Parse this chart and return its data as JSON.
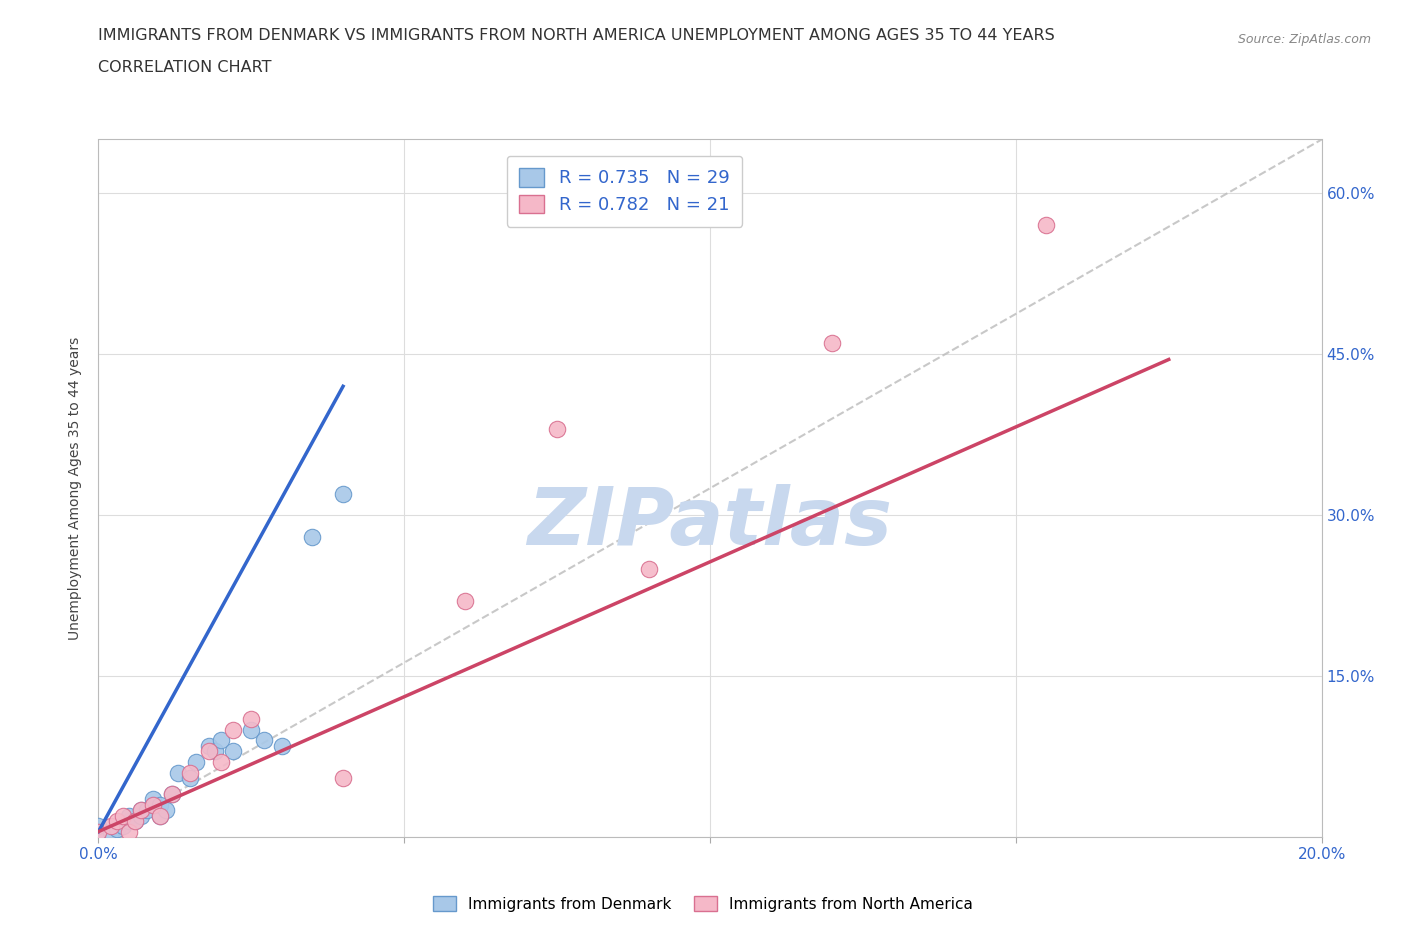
{
  "title_line1": "IMMIGRANTS FROM DENMARK VS IMMIGRANTS FROM NORTH AMERICA UNEMPLOYMENT AMONG AGES 35 TO 44 YEARS",
  "title_line2": "CORRELATION CHART",
  "source_text": "Source: ZipAtlas.com",
  "ylabel": "Unemployment Among Ages 35 to 44 years",
  "x_min": 0.0,
  "x_max": 0.2,
  "y_min": 0.0,
  "y_max": 0.65,
  "x_ticks": [
    0.0,
    0.05,
    0.1,
    0.15,
    0.2
  ],
  "x_tick_labels": [
    "0.0%",
    "",
    "",
    "",
    "20.0%"
  ],
  "y_ticks": [
    0.0,
    0.15,
    0.3,
    0.45,
    0.6
  ],
  "y_tick_labels": [
    "",
    "15.0%",
    "30.0%",
    "45.0%",
    "60.0%"
  ],
  "denmark_color": "#a8c8e8",
  "denmark_edge_color": "#6699cc",
  "north_america_color": "#f5b8c8",
  "north_america_edge_color": "#d97090",
  "denmark_line_color": "#3366cc",
  "north_america_line_color": "#cc4466",
  "diagonal_color": "#bbbbbb",
  "watermark_color": "#c8d8ee",
  "watermark_text": "ZIPatlas",
  "legend_label1": "R = 0.735   N = 29",
  "legend_label2": "R = 0.782   N = 21",
  "denmark_scatter_x": [
    0.0,
    0.0,
    0.002,
    0.003,
    0.004,
    0.005,
    0.005,
    0.006,
    0.007,
    0.007,
    0.008,
    0.009,
    0.009,
    0.01,
    0.01,
    0.011,
    0.012,
    0.013,
    0.015,
    0.016,
    0.018,
    0.019,
    0.02,
    0.022,
    0.025,
    0.027,
    0.03,
    0.035,
    0.04
  ],
  "denmark_scatter_y": [
    0.005,
    0.01,
    0.005,
    0.007,
    0.01,
    0.015,
    0.02,
    0.015,
    0.02,
    0.025,
    0.025,
    0.03,
    0.035,
    0.02,
    0.03,
    0.025,
    0.04,
    0.06,
    0.055,
    0.07,
    0.085,
    0.08,
    0.09,
    0.08,
    0.1,
    0.09,
    0.085,
    0.28,
    0.32
  ],
  "north_america_scatter_x": [
    0.0,
    0.002,
    0.003,
    0.004,
    0.005,
    0.006,
    0.007,
    0.009,
    0.01,
    0.012,
    0.015,
    0.018,
    0.02,
    0.022,
    0.025,
    0.04,
    0.06,
    0.075,
    0.09,
    0.12,
    0.155
  ],
  "north_america_scatter_y": [
    0.005,
    0.01,
    0.015,
    0.02,
    0.005,
    0.015,
    0.025,
    0.03,
    0.02,
    0.04,
    0.06,
    0.08,
    0.07,
    0.1,
    0.11,
    0.055,
    0.22,
    0.38,
    0.25,
    0.46,
    0.57
  ],
  "denmark_line_x": [
    0.0,
    0.04
  ],
  "denmark_line_y": [
    0.005,
    0.42
  ],
  "north_america_line_x": [
    0.0,
    0.175
  ],
  "north_america_line_y": [
    0.005,
    0.445
  ],
  "diagonal_line_x": [
    0.0,
    0.2
  ],
  "diagonal_line_y": [
    0.0,
    0.65
  ]
}
